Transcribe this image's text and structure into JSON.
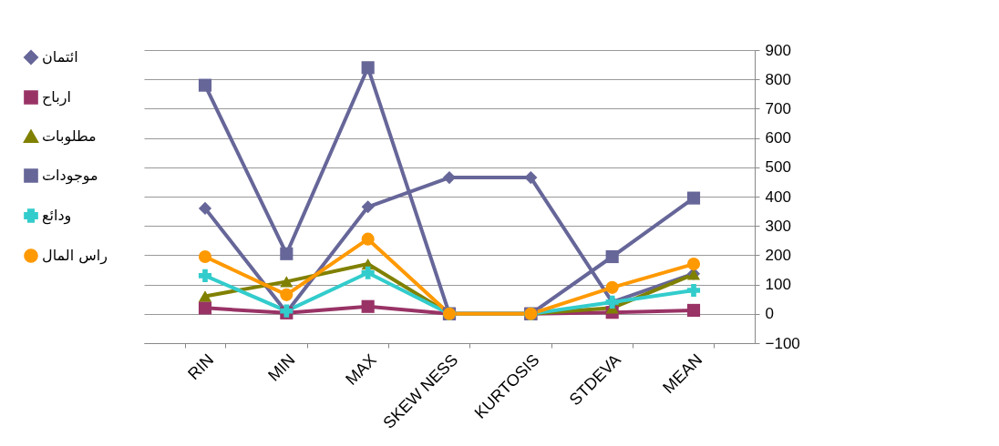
{
  "chart_data": {
    "type": "line",
    "categories": [
      "RIN",
      "MIN",
      "MAX",
      "SKEW NESS",
      "KURTOSIS",
      "STDEVA",
      "MEAN"
    ],
    "ylim": [
      -100,
      900
    ],
    "yticks": [
      -100,
      0,
      100,
      200,
      300,
      400,
      500,
      600,
      700,
      800,
      900
    ],
    "grid": "y",
    "legend": "left",
    "line_style": "solid",
    "series": [
      {
        "name": "ائتمان",
        "color": "#666699",
        "marker": "diamond",
        "values": [
          360,
          5,
          365,
          465,
          465,
          40,
          137
        ]
      },
      {
        "name": "ارباح",
        "color": "#993366",
        "marker": "square",
        "values": [
          20,
          3,
          25,
          0,
          0,
          5,
          12
        ]
      },
      {
        "name": "مطلوبات",
        "color": "#808000",
        "marker": "triangle",
        "values": [
          60,
          110,
          170,
          0,
          0,
          20,
          135
        ]
      },
      {
        "name": "موجودات",
        "color": "#666699",
        "marker": "square",
        "values": [
          780,
          205,
          840,
          0,
          0,
          195,
          395
        ]
      },
      {
        "name": "ودائع",
        "color": "#33cccc",
        "marker": "cross",
        "values": [
          130,
          10,
          140,
          0,
          0,
          40,
          80
        ]
      },
      {
        "name": "راس المال",
        "color": "#ff9900",
        "marker": "circle",
        "values": [
          195,
          65,
          255,
          0,
          0,
          90,
          170
        ]
      }
    ]
  }
}
